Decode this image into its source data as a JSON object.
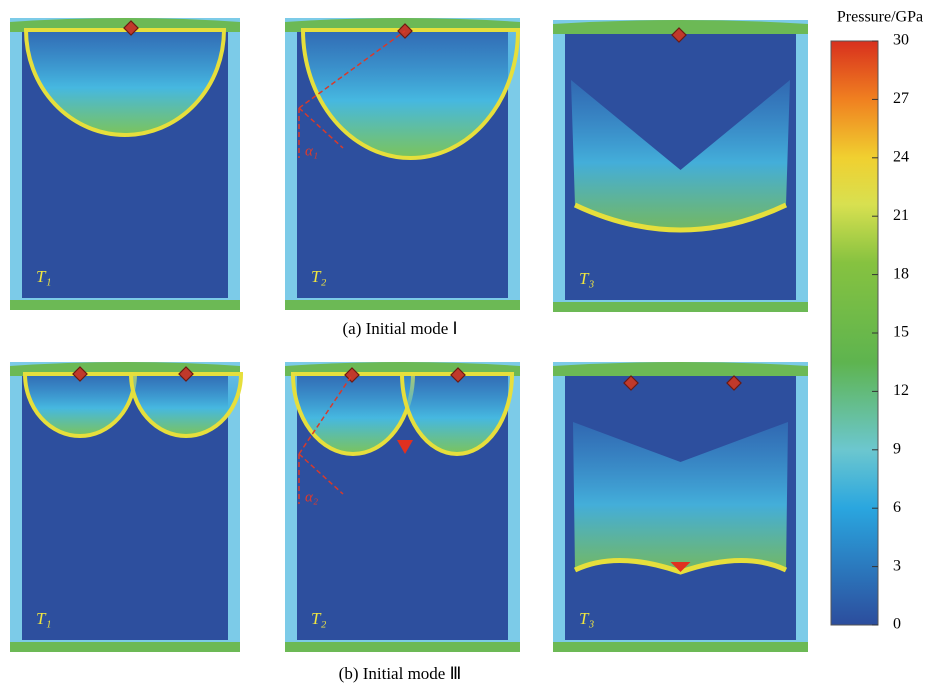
{
  "figure": {
    "rows": [
      {
        "caption": "(a) Initial mode Ⅰ",
        "panels": [
          {
            "label": "T₁"
          },
          {
            "label": "T₂",
            "angle": "α₁"
          },
          {
            "label": "T₃"
          }
        ]
      },
      {
        "caption": "(b) Initial mode Ⅲ",
        "panels": [
          {
            "label": "T₁"
          },
          {
            "label": "T₂",
            "angle": "α₂"
          },
          {
            "label": "T₃"
          }
        ]
      }
    ],
    "colorbar": {
      "title": "Pressure/GPa",
      "lim": [
        0,
        30
      ],
      "ticks": [
        0,
        3,
        6,
        9,
        12,
        15,
        18,
        21,
        24,
        27,
        30
      ]
    }
  }
}
